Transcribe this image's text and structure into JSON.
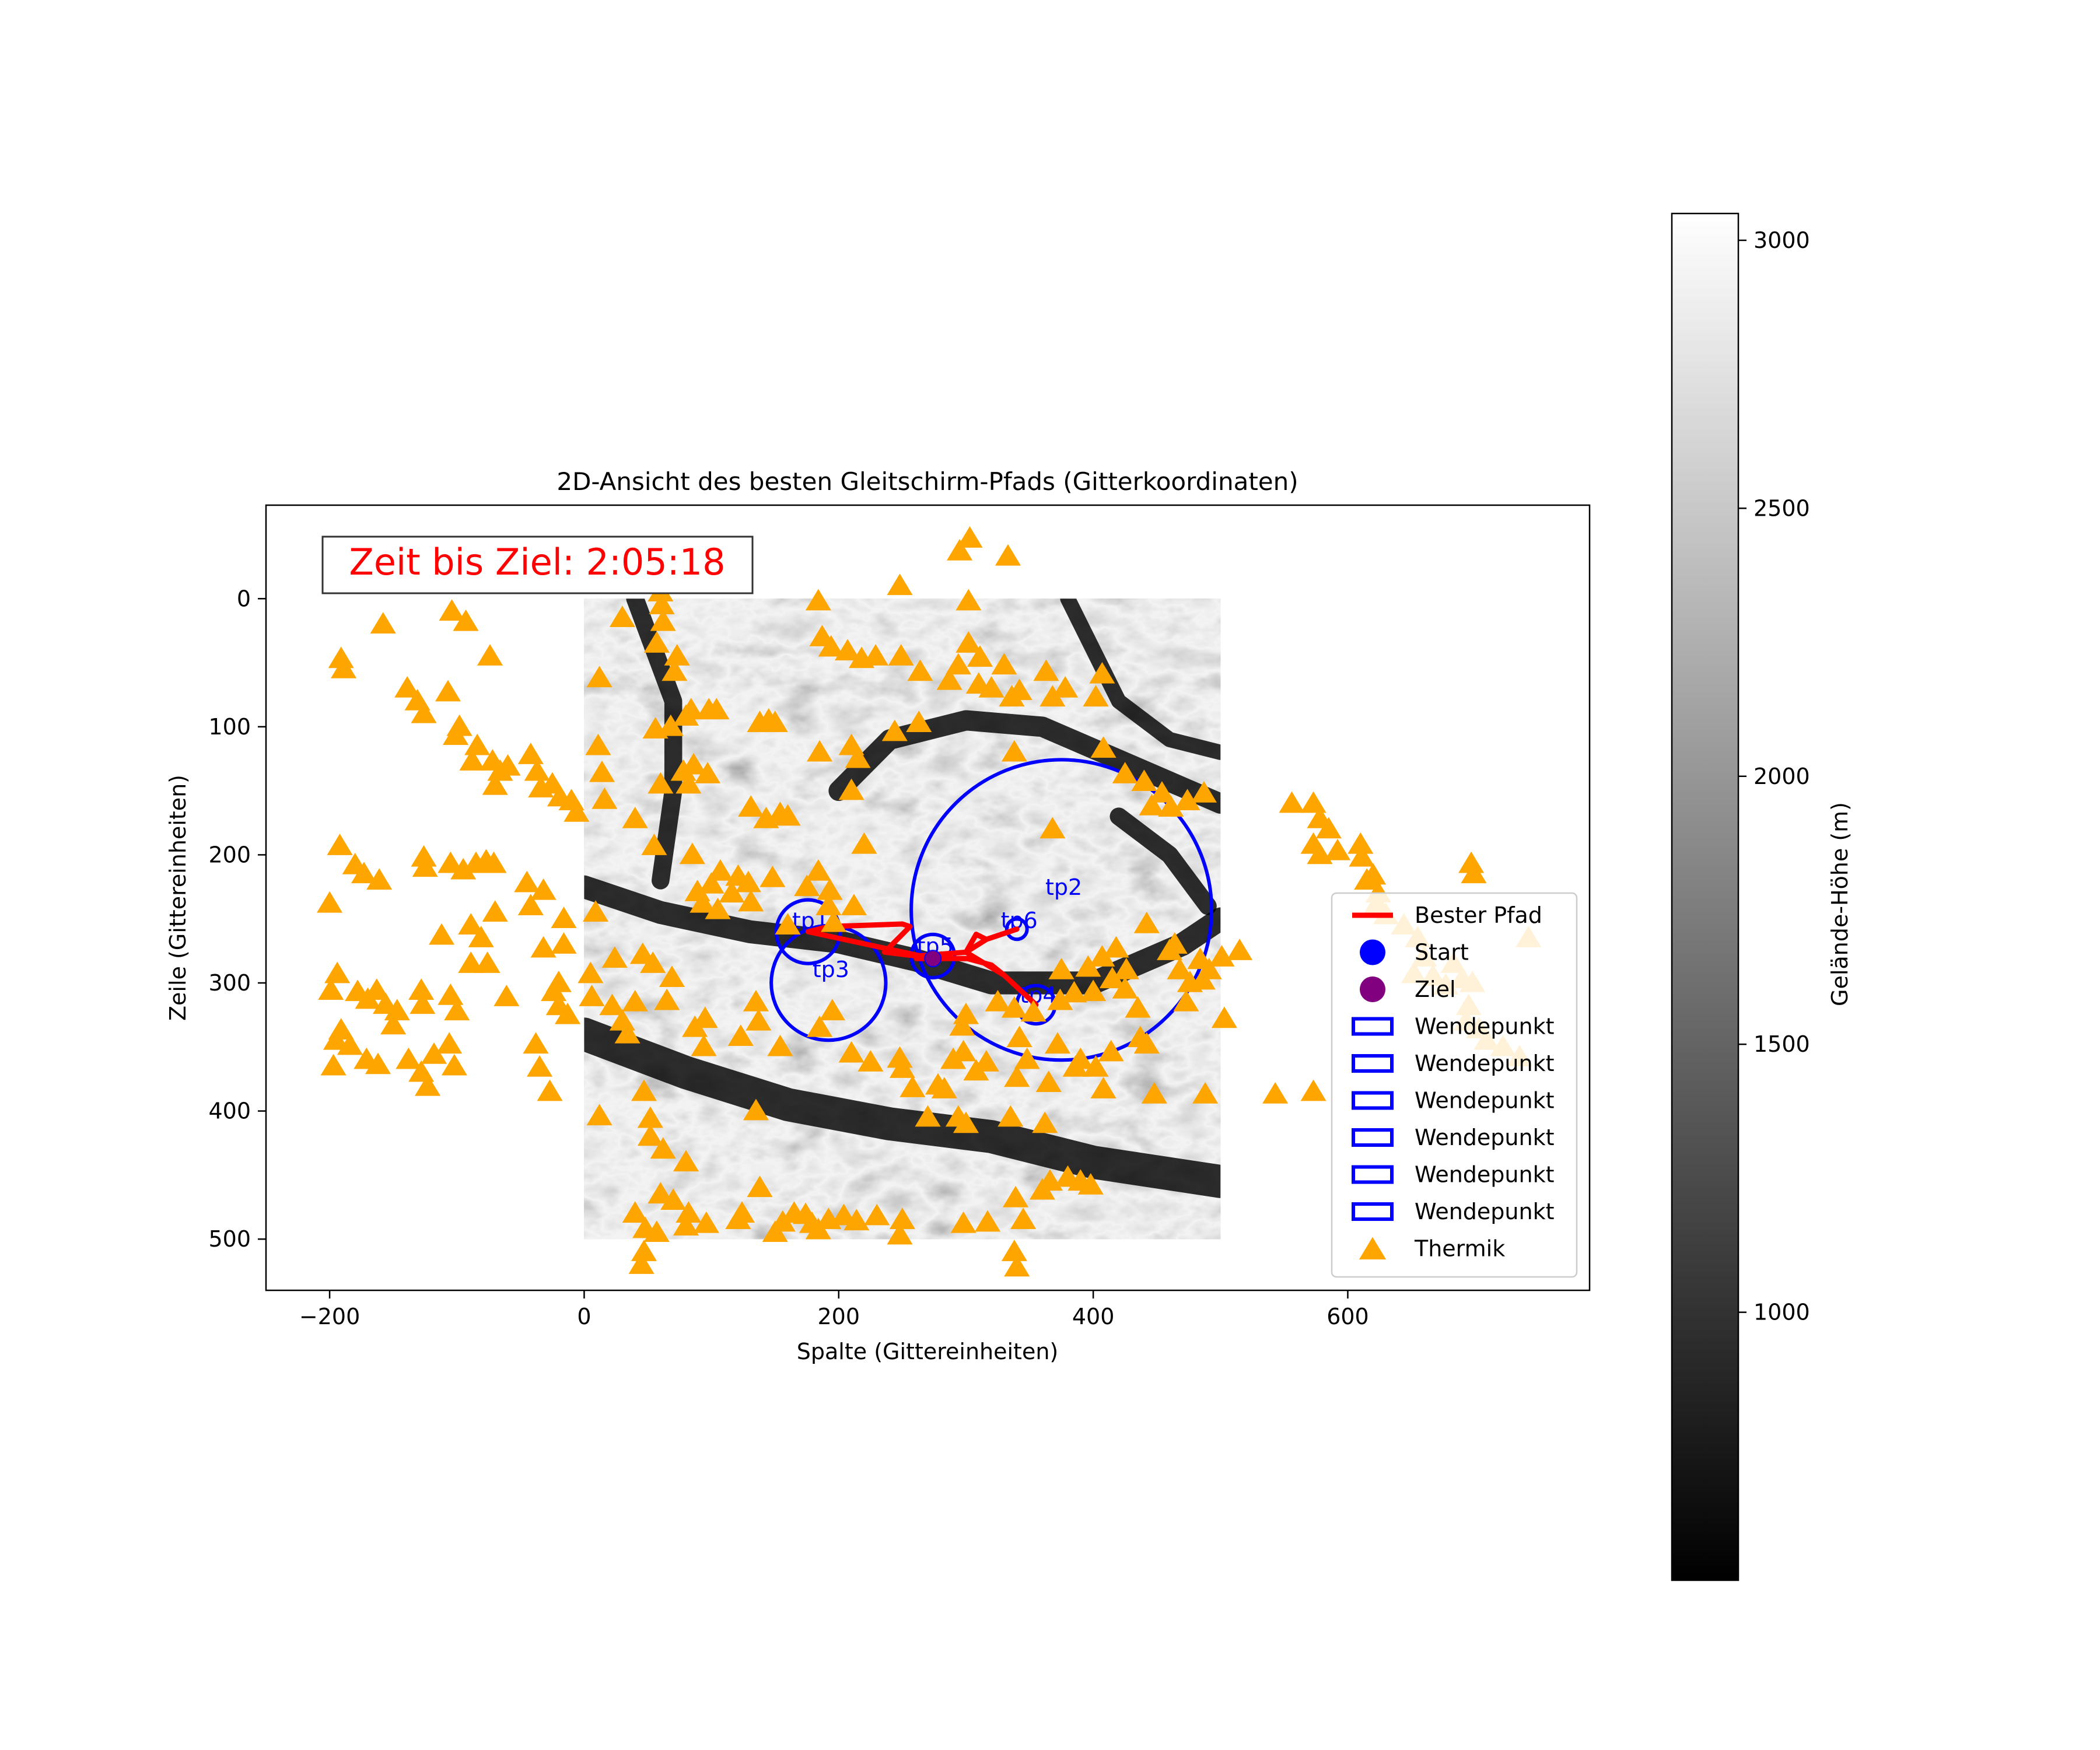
{
  "chart_data": {
    "type": "scatter",
    "title": "2D-Ansicht des besten Gleitschirm-Pfads (Gitterkoordinaten)",
    "xlabel": "Spalte (Gittereinheiten)",
    "ylabel": "Zeile (Gittereinheiten)",
    "xlim": [
      -250,
      790
    ],
    "ylim": [
      540,
      -73
    ],
    "x_ticks": [
      -200,
      0,
      200,
      400,
      600
    ],
    "y_ticks": [
      0,
      100,
      200,
      300,
      400,
      500
    ],
    "x_tick_labels": [
      "−200",
      "0",
      "200",
      "400",
      "600"
    ],
    "y_tick_labels": [
      "0",
      "100",
      "200",
      "300",
      "400",
      "500"
    ],
    "terrain_extent": [
      0,
      500,
      0,
      500
    ],
    "annotation": {
      "text": "Zeit bis Ziel: 2:05:18",
      "color": "#ff0000"
    },
    "colorbar": {
      "label": "Gelände-Höhe (m)",
      "range": [
        500,
        3050
      ],
      "ticks": [
        1000,
        1500,
        2000,
        2500,
        3000
      ],
      "tick_labels": [
        "1000",
        "1500",
        "2000",
        "2500",
        "3000"
      ],
      "colormap": "gray"
    },
    "legend": {
      "placement": "center-right",
      "entries": [
        {
          "label": "Bester Pfad",
          "kind": "line",
          "color": "#ff0000"
        },
        {
          "label": "Start",
          "kind": "circle",
          "color": "#0000ff"
        },
        {
          "label": "Ziel",
          "kind": "circle",
          "color": "#800080"
        },
        {
          "label": "Wendepunkt",
          "kind": "rect",
          "color": "#0000ff"
        },
        {
          "label": "Wendepunkt",
          "kind": "rect",
          "color": "#0000ff"
        },
        {
          "label": "Wendepunkt",
          "kind": "rect",
          "color": "#0000ff"
        },
        {
          "label": "Wendepunkt",
          "kind": "rect",
          "color": "#0000ff"
        },
        {
          "label": "Wendepunkt",
          "kind": "rect",
          "color": "#0000ff"
        },
        {
          "label": "Wendepunkt",
          "kind": "rect",
          "color": "#0000ff"
        },
        {
          "label": "Thermik",
          "kind": "triangle",
          "color": "#ffa500"
        }
      ]
    },
    "start": {
      "x": 274,
      "y": 281,
      "color": "#0000ff"
    },
    "ziel": {
      "x": 274,
      "y": 281,
      "color": "#800080"
    },
    "turnpoints": [
      {
        "label": "tp1",
        "x": 176,
        "y": 260,
        "r": 25
      },
      {
        "label": "tp2",
        "x": 375,
        "y": 243,
        "r": 118
      },
      {
        "label": "tp3",
        "x": 192,
        "y": 300,
        "r": 45
      },
      {
        "label": "tp4",
        "x": 355,
        "y": 317,
        "r": 15
      },
      {
        "label": "tp5",
        "x": 274,
        "y": 279,
        "r": 17
      },
      {
        "label": "tp6",
        "x": 340,
        "y": 258,
        "r": 8
      }
    ],
    "best_path": [
      [
        274,
        281
      ],
      [
        176,
        260
      ],
      [
        192,
        256
      ],
      [
        250,
        254
      ],
      [
        256,
        256
      ],
      [
        236,
        276
      ],
      [
        261,
        279
      ],
      [
        300,
        276
      ],
      [
        308,
        262
      ],
      [
        316,
        266
      ],
      [
        340,
        258
      ],
      [
        316,
        266
      ],
      [
        300,
        276
      ],
      [
        330,
        294
      ],
      [
        355,
        317
      ],
      [
        330,
        294
      ],
      [
        320,
        286
      ],
      [
        301,
        281
      ],
      [
        261,
        281
      ],
      [
        274,
        281
      ]
    ],
    "thermals": [
      [
        62,
        -17
      ],
      [
        303,
        -47
      ],
      [
        295,
        -37
      ],
      [
        333,
        -33
      ],
      [
        60,
        -5
      ],
      [
        61,
        5
      ],
      [
        248,
        -10
      ],
      [
        184,
        2
      ],
      [
        302,
        2
      ],
      [
        62,
        18
      ],
      [
        30,
        15
      ],
      [
        -158,
        20
      ],
      [
        -104,
        10
      ],
      [
        -93,
        18
      ],
      [
        -191,
        47
      ],
      [
        -189,
        55
      ],
      [
        -74,
        45
      ],
      [
        187,
        30
      ],
      [
        194,
        38
      ],
      [
        207,
        41
      ],
      [
        218,
        47
      ],
      [
        229,
        45
      ],
      [
        249,
        45
      ],
      [
        57,
        35
      ],
      [
        73,
        45
      ],
      [
        71,
        57
      ],
      [
        12,
        62
      ],
      [
        264,
        57
      ],
      [
        302,
        35
      ],
      [
        311,
        46
      ],
      [
        294,
        52
      ],
      [
        330,
        52
      ],
      [
        363,
        57
      ],
      [
        407,
        59
      ],
      [
        287,
        64
      ],
      [
        310,
        67
      ],
      [
        320,
        70
      ],
      [
        342,
        72
      ],
      [
        336,
        77
      ],
      [
        368,
        77
      ],
      [
        378,
        70
      ],
      [
        402,
        77
      ],
      [
        -139,
        70
      ],
      [
        -131,
        80
      ],
      [
        -126,
        90
      ],
      [
        -107,
        73
      ],
      [
        -98,
        100
      ],
      [
        -101,
        107
      ],
      [
        84,
        87
      ],
      [
        80,
        92
      ],
      [
        56,
        102
      ],
      [
        68,
        100
      ],
      [
        98,
        87
      ],
      [
        104,
        87
      ],
      [
        138,
        97
      ],
      [
        145,
        95
      ],
      [
        150,
        97
      ],
      [
        11,
        115
      ],
      [
        -84,
        115
      ],
      [
        -88,
        127
      ],
      [
        -72,
        127
      ],
      [
        -66,
        135
      ],
      [
        -60,
        131
      ],
      [
        -70,
        146
      ],
      [
        -42,
        122
      ],
      [
        -37,
        135
      ],
      [
        -34,
        148
      ],
      [
        -25,
        145
      ],
      [
        -19,
        155
      ],
      [
        -10,
        158
      ],
      [
        -6,
        167
      ],
      [
        14,
        136
      ],
      [
        16,
        157
      ],
      [
        244,
        104
      ],
      [
        263,
        97
      ],
      [
        185,
        120
      ],
      [
        210,
        115
      ],
      [
        215,
        125
      ],
      [
        210,
        150
      ],
      [
        338,
        120
      ],
      [
        408,
        117
      ],
      [
        425,
        137
      ],
      [
        440,
        143
      ],
      [
        454,
        152
      ],
      [
        446,
        162
      ],
      [
        461,
        163
      ],
      [
        474,
        158
      ],
      [
        487,
        152
      ],
      [
        368,
        180
      ],
      [
        78,
        135
      ],
      [
        82,
        145
      ],
      [
        86,
        130
      ],
      [
        60,
        145
      ],
      [
        97,
        137
      ],
      [
        131,
        163
      ],
      [
        143,
        172
      ],
      [
        154,
        168
      ],
      [
        160,
        170
      ],
      [
        40,
        172
      ],
      [
        55,
        193
      ],
      [
        85,
        200
      ],
      [
        89,
        229
      ],
      [
        116,
        230
      ],
      [
        100,
        223
      ],
      [
        107,
        213
      ],
      [
        121,
        217
      ],
      [
        129,
        222
      ],
      [
        131,
        237
      ],
      [
        93,
        238
      ],
      [
        105,
        243
      ],
      [
        148,
        218
      ],
      [
        184,
        213
      ],
      [
        220,
        192
      ],
      [
        175,
        225
      ],
      [
        193,
        228
      ],
      [
        212,
        240
      ],
      [
        192,
        240
      ],
      [
        196,
        253
      ],
      [
        160,
        255
      ],
      [
        -200,
        238
      ],
      [
        -192,
        193
      ],
      [
        -180,
        208
      ],
      [
        -173,
        215
      ],
      [
        -161,
        220
      ],
      [
        -126,
        202
      ],
      [
        -125,
        210
      ],
      [
        -105,
        207
      ],
      [
        -95,
        212
      ],
      [
        -85,
        207
      ],
      [
        -77,
        205
      ],
      [
        -71,
        207
      ],
      [
        -45,
        222
      ],
      [
        -42,
        240
      ],
      [
        -32,
        228
      ],
      [
        -70,
        245
      ],
      [
        -89,
        255
      ],
      [
        -81,
        265
      ],
      [
        -89,
        285
      ],
      [
        -112,
        263
      ],
      [
        -76,
        285
      ],
      [
        -32,
        273
      ],
      [
        -16,
        250
      ],
      [
        -16,
        270
      ],
      [
        9,
        245
      ],
      [
        24,
        281
      ],
      [
        46,
        278
      ],
      [
        54,
        285
      ],
      [
        69,
        296
      ],
      [
        -194,
        293
      ],
      [
        -199,
        306
      ],
      [
        -178,
        307
      ],
      [
        -170,
        313
      ],
      [
        -156,
        317
      ],
      [
        -163,
        306
      ],
      [
        -147,
        322
      ],
      [
        -150,
        333
      ],
      [
        -128,
        306
      ],
      [
        -127,
        317
      ],
      [
        -105,
        310
      ],
      [
        -100,
        322
      ],
      [
        -191,
        337
      ],
      [
        -195,
        345
      ],
      [
        -197,
        365
      ],
      [
        -184,
        349
      ],
      [
        -171,
        360
      ],
      [
        -162,
        364
      ],
      [
        -138,
        360
      ],
      [
        -128,
        370
      ],
      [
        -123,
        381
      ],
      [
        -118,
        356
      ],
      [
        -106,
        348
      ],
      [
        -102,
        365
      ],
      [
        -38,
        348
      ],
      [
        -61,
        311
      ],
      [
        -20,
        300
      ],
      [
        -24,
        307
      ],
      [
        -20,
        318
      ],
      [
        -13,
        325
      ],
      [
        5,
        293
      ],
      [
        6,
        311
      ],
      [
        22,
        318
      ],
      [
        30,
        330
      ],
      [
        40,
        315
      ],
      [
        34,
        340
      ],
      [
        65,
        314
      ],
      [
        87,
        335
      ],
      [
        95,
        328
      ],
      [
        94,
        350
      ],
      [
        123,
        342
      ],
      [
        135,
        315
      ],
      [
        137,
        330
      ],
      [
        154,
        350
      ],
      [
        185,
        335
      ],
      [
        195,
        322
      ],
      [
        210,
        355
      ],
      [
        225,
        362
      ],
      [
        248,
        359
      ],
      [
        258,
        382
      ],
      [
        250,
        367
      ],
      [
        283,
        383
      ],
      [
        316,
        362
      ],
      [
        348,
        360
      ],
      [
        342,
        343
      ],
      [
        298,
        354
      ],
      [
        300,
        325
      ],
      [
        297,
        334
      ],
      [
        338,
        320
      ],
      [
        353,
        323
      ],
      [
        374,
        314
      ],
      [
        375,
        290
      ],
      [
        385,
        308
      ],
      [
        400,
        307
      ],
      [
        415,
        297
      ],
      [
        426,
        290
      ],
      [
        425,
        305
      ],
      [
        407,
        280
      ],
      [
        396,
        288
      ],
      [
        418,
        273
      ],
      [
        442,
        254
      ],
      [
        464,
        270
      ],
      [
        460,
        275
      ],
      [
        468,
        290
      ],
      [
        484,
        282
      ],
      [
        491,
        290
      ],
      [
        476,
        300
      ],
      [
        486,
        298
      ],
      [
        501,
        280
      ],
      [
        515,
        275
      ],
      [
        435,
        320
      ],
      [
        437,
        343
      ],
      [
        442,
        348
      ],
      [
        414,
        354
      ],
      [
        402,
        366
      ],
      [
        386,
        366
      ],
      [
        372,
        348
      ],
      [
        325,
        315
      ],
      [
        473,
        315
      ],
      [
        503,
        328
      ],
      [
        488,
        387
      ],
      [
        448,
        387
      ],
      [
        408,
        383
      ],
      [
        390,
        360
      ],
      [
        365,
        378
      ],
      [
        340,
        374
      ],
      [
        308,
        369
      ],
      [
        290,
        360
      ],
      [
        278,
        380
      ],
      [
        270,
        405
      ],
      [
        294,
        405
      ],
      [
        300,
        410
      ],
      [
        335,
        405
      ],
      [
        362,
        410
      ],
      [
        -35,
        366
      ],
      [
        -27,
        385
      ],
      [
        12,
        404
      ],
      [
        47,
        385
      ],
      [
        52,
        406
      ],
      [
        52,
        420
      ],
      [
        135,
        400
      ],
      [
        62,
        430
      ],
      [
        80,
        440
      ],
      [
        60,
        465
      ],
      [
        70,
        470
      ],
      [
        40,
        480
      ],
      [
        48,
        492
      ],
      [
        57,
        495
      ],
      [
        47,
        510
      ],
      [
        45,
        520
      ],
      [
        82,
        480
      ],
      [
        96,
        488
      ],
      [
        121,
        485
      ],
      [
        124,
        480
      ],
      [
        156,
        487
      ],
      [
        150,
        495
      ],
      [
        165,
        480
      ],
      [
        174,
        481
      ],
      [
        179,
        488
      ],
      [
        192,
        485
      ],
      [
        204,
        482
      ],
      [
        214,
        486
      ],
      [
        250,
        485
      ],
      [
        230,
        482
      ],
      [
        248,
        497
      ],
      [
        298,
        488
      ],
      [
        317,
        487
      ],
      [
        345,
        485
      ],
      [
        339,
        468
      ],
      [
        360,
        462
      ],
      [
        366,
        455
      ],
      [
        380,
        452
      ],
      [
        390,
        455
      ],
      [
        398,
        458
      ],
      [
        340,
        522
      ],
      [
        338,
        510
      ],
      [
        184,
        493
      ],
      [
        80,
        490
      ],
      [
        138,
        460
      ],
      [
        543,
        387
      ],
      [
        573,
        385
      ],
      [
        556,
        160
      ],
      [
        573,
        160
      ],
      [
        578,
        172
      ],
      [
        585,
        180
      ],
      [
        573,
        192
      ],
      [
        578,
        200
      ],
      [
        592,
        197
      ],
      [
        610,
        192
      ],
      [
        611,
        202
      ],
      [
        620,
        216
      ],
      [
        624,
        230
      ],
      [
        623,
        238
      ],
      [
        630,
        247
      ],
      [
        644,
        255
      ],
      [
        655,
        265
      ],
      [
        660,
        280
      ],
      [
        652,
        293
      ],
      [
        667,
        295
      ],
      [
        677,
        302
      ],
      [
        683,
        285
      ],
      [
        690,
        297
      ],
      [
        698,
        300
      ],
      [
        695,
        318
      ],
      [
        693,
        330
      ],
      [
        703,
        336
      ],
      [
        709,
        345
      ],
      [
        722,
        350
      ],
      [
        735,
        358
      ],
      [
        742,
        265
      ],
      [
        697,
        207
      ],
      [
        699,
        215
      ],
      [
        615,
        220
      ]
    ]
  },
  "colors": {
    "terrain_low": "#000000",
    "terrain_high": "#ffffff",
    "thermal": "#ffa500",
    "path": "#ff0000",
    "turnpoint": "#0000ff"
  }
}
